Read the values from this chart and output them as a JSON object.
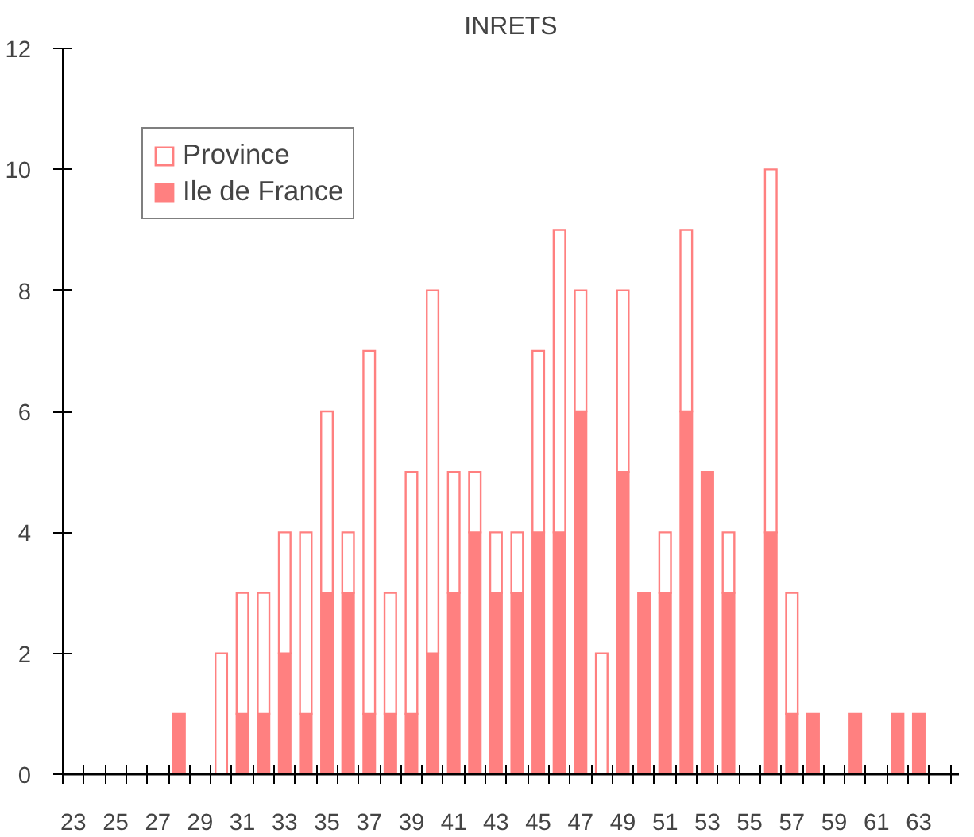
{
  "chart_data": {
    "type": "bar",
    "title": "INRETS",
    "stacked": true,
    "categories": [
      "23",
      null,
      "25",
      null,
      "27",
      null,
      "29",
      null,
      "31",
      null,
      "33",
      null,
      "35",
      null,
      "37",
      null,
      "39",
      null,
      "41",
      null,
      "43",
      null,
      "45",
      null,
      "47",
      null,
      "49",
      null,
      "51",
      null,
      "53",
      null,
      "55",
      null,
      "57",
      null,
      "59",
      null,
      "61",
      null,
      "63",
      null
    ],
    "series": [
      {
        "name": "Ile de France",
        "color": "#ff8080",
        "values": [
          0,
          0,
          0,
          0,
          0,
          1,
          0,
          0,
          1,
          1,
          2,
          1,
          3,
          3,
          1,
          1,
          1,
          2,
          3,
          4,
          3,
          3,
          4,
          4,
          6,
          0,
          5,
          3,
          3,
          6,
          5,
          3,
          0,
          4,
          1,
          1,
          0,
          1,
          0,
          1,
          1,
          0
        ]
      },
      {
        "name": "Province",
        "color": "#ffffff",
        "values": [
          0,
          0,
          0,
          0,
          0,
          0,
          0,
          2,
          2,
          2,
          2,
          3,
          3,
          1,
          6,
          2,
          4,
          6,
          2,
          1,
          1,
          1,
          3,
          5,
          2,
          2,
          3,
          0,
          1,
          3,
          0,
          1,
          0,
          6,
          2,
          0,
          0,
          0,
          0,
          0,
          0,
          0
        ]
      }
    ],
    "ylim": [
      0,
      12
    ],
    "yticks": [
      0,
      2,
      4,
      6,
      8,
      10,
      12
    ],
    "grid": false,
    "legend": "top left"
  }
}
